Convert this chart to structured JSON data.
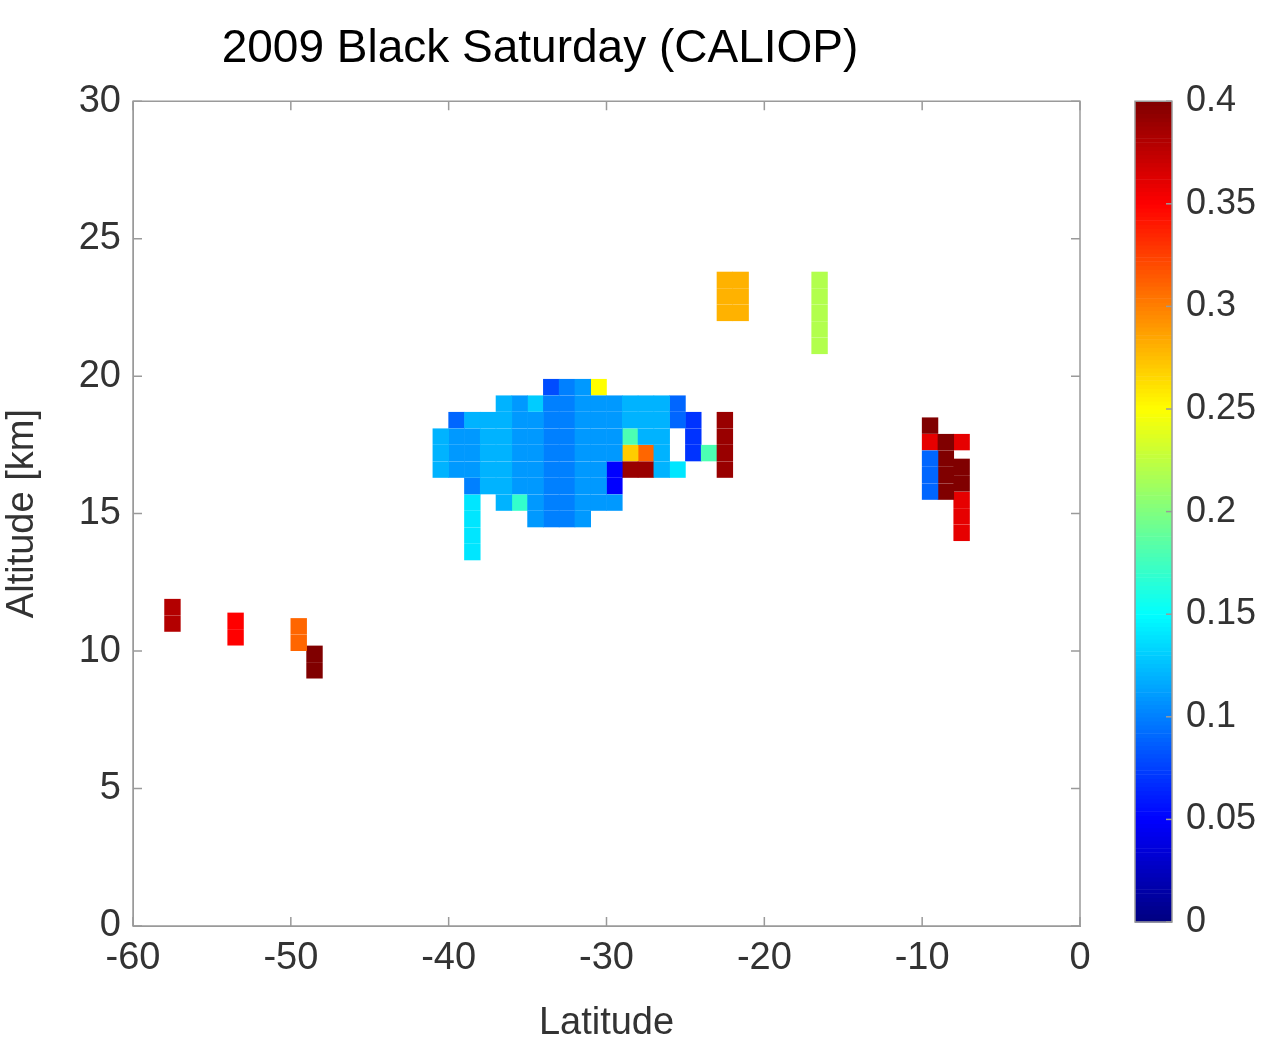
{
  "chart_data": {
    "type": "scatter",
    "title": "2009 Black Saturday (CALIOP)",
    "xlabel": "Latitude",
    "ylabel": "Altitude [km]",
    "xlim": [
      -60,
      0
    ],
    "xticks": [
      -60,
      -50,
      -40,
      -30,
      -20,
      -10,
      0
    ],
    "ylim": [
      0,
      30
    ],
    "yticks": [
      0,
      5,
      10,
      15,
      20,
      25,
      30
    ],
    "clim": [
      0,
      0.4
    ],
    "cticks": [
      0,
      0.05,
      0.1,
      0.15,
      0.2,
      0.25,
      0.3,
      0.35,
      0.4
    ],
    "marker": "square",
    "grid": false,
    "legend": false,
    "series": [
      {
        "x": [
          -40.5,
          -40.5,
          -40.5,
          -38.5,
          -37.5,
          -37.5,
          -37.5,
          -37.5,
          -37.5,
          -36.5,
          -36.5,
          -36.5,
          -36.5,
          -36.5,
          -36.5,
          -36.5,
          -28.5,
          -28.5,
          -27.5,
          -27.5,
          -27.5,
          -26.5,
          -26.5,
          -26.5,
          -26.5,
          -26.5
        ],
        "values": [
          16.6,
          17.2,
          17.8,
          18.4,
          16.0,
          16.6,
          17.2,
          17.8,
          18.4,
          15.4,
          16.0,
          16.6,
          17.2,
          17.8,
          18.4,
          19.0,
          18.4,
          19.0,
          17.8,
          18.4,
          19.0,
          16.6,
          17.2,
          17.8,
          18.4,
          19.0
        ],
        "cvalues": [
          0.12,
          0.12,
          0.12,
          0.12,
          0.12,
          0.12,
          0.12,
          0.12,
          0.12,
          0.12,
          0.12,
          0.12,
          0.12,
          0.12,
          0.12,
          0.12,
          0.12,
          0.12,
          0.12,
          0.12,
          0.12,
          0.12,
          0.12,
          0.12,
          0.12,
          0.12
        ]
      },
      {
        "x": [
          -39.5,
          -39.5,
          -39.5,
          -38.5,
          -38.5,
          -38.5,
          -35.5,
          -35.5,
          -35.5,
          -35.5,
          -35.5,
          -35.5,
          -34.5,
          -34.5,
          -34.5,
          -34.5,
          -34.5,
          -34.5,
          -34.5,
          -31.5,
          -31.5,
          -31.5,
          -31.5,
          -31.5,
          -31.5,
          -31.5,
          -31.5,
          -31.5,
          -30.5,
          -30.5,
          -30.5,
          -30.5,
          -30.5,
          -30.5,
          -30.5,
          -29.5,
          -29.5,
          -29.5,
          -29.5,
          -29.5
        ],
        "values": [
          16.6,
          17.2,
          17.8,
          16.6,
          17.2,
          17.8,
          16.0,
          16.6,
          17.2,
          17.8,
          18.4,
          19.0,
          14.8,
          15.4,
          16.0,
          16.6,
          17.2,
          17.8,
          18.4,
          14.8,
          15.4,
          16.0,
          16.6,
          17.2,
          17.8,
          18.4,
          19.0,
          19.6,
          15.4,
          16.0,
          16.6,
          17.2,
          17.8,
          18.4,
          19.0,
          15.4,
          17.2,
          17.8,
          18.4,
          19.0
        ],
        "cvalues": [
          0.11,
          0.11,
          0.11,
          0.11,
          0.11,
          0.11,
          0.11,
          0.11,
          0.11,
          0.11,
          0.11,
          0.11,
          0.11,
          0.11,
          0.11,
          0.11,
          0.11,
          0.11,
          0.11,
          0.11,
          0.11,
          0.11,
          0.11,
          0.11,
          0.11,
          0.11,
          0.11,
          0.11,
          0.11,
          0.11,
          0.11,
          0.11,
          0.11,
          0.11,
          0.11,
          0.11,
          0.11,
          0.11,
          0.11,
          0.11
        ]
      },
      {
        "x": [
          -38.5,
          -33.5,
          -33.5,
          -33.5,
          -33.5,
          -33.5,
          -33.5,
          -33.5,
          -33.5,
          -32.5,
          -32.5,
          -32.5,
          -32.5,
          -32.5,
          -32.5,
          -32.5,
          -32.5,
          -32.5
        ],
        "values": [
          16.0,
          14.8,
          15.4,
          16.0,
          16.6,
          17.2,
          17.8,
          18.4,
          19.0,
          14.8,
          15.4,
          16.0,
          16.6,
          17.2,
          17.8,
          18.4,
          19.0,
          19.6
        ],
        "cvalues": [
          0.1,
          0.1,
          0.1,
          0.1,
          0.1,
          0.1,
          0.1,
          0.1,
          0.1,
          0.1,
          0.1,
          0.1,
          0.1,
          0.1,
          0.1,
          0.1,
          0.1,
          0.1
        ]
      },
      {
        "x": [
          -39.5,
          -25.5,
          -25.5,
          -9.5,
          -9.5,
          -9.5
        ],
        "values": [
          18.4,
          18.4,
          19.0,
          15.8,
          16.4,
          17.0
        ],
        "cvalues": [
          0.09,
          0.09,
          0.09,
          0.09,
          0.09,
          0.09
        ]
      },
      {
        "x": [
          -33.5
        ],
        "values": [
          19.6
        ],
        "cvalues": [
          0.08
        ]
      },
      {
        "x": [
          -38.5,
          -38.5,
          -38.5,
          -38.5,
          -25.5
        ],
        "values": [
          13.6,
          14.2,
          14.8,
          15.4,
          16.6
        ],
        "cvalues": [
          0.14,
          0.14,
          0.14,
          0.14,
          0.14
        ]
      },
      {
        "x": [
          -35.5
        ],
        "values": [
          15.4
        ],
        "cvalues": [
          0.17
        ]
      },
      {
        "x": [
          -34.5
        ],
        "values": [
          19.0
        ],
        "cvalues": [
          0.13
        ]
      },
      {
        "x": [
          -30.5
        ],
        "values": [
          19.6
        ],
        "cvalues": [
          0.25
        ]
      },
      {
        "x": [
          -29.5,
          -29.5
        ],
        "values": [
          16.0,
          16.6
        ],
        "cvalues": [
          0.05,
          0.05
        ]
      },
      {
        "x": [
          -28.5,
          -27.5,
          -22.5,
          -22.5,
          -22.5,
          -22.5
        ],
        "values": [
          16.6,
          16.6,
          16.6,
          17.2,
          17.8,
          18.4
        ],
        "cvalues": [
          0.39,
          0.39,
          0.39,
          0.39,
          0.39,
          0.39
        ]
      },
      {
        "x": [
          -28.5
        ],
        "values": [
          17.2
        ],
        "cvalues": [
          0.27
        ]
      },
      {
        "x": [
          -28.5,
          -23.5
        ],
        "values": [
          17.8,
          17.2
        ],
        "cvalues": [
          0.18,
          0.18
        ]
      },
      {
        "x": [
          -27.5,
          -49.5,
          -49.5
        ],
        "values": [
          17.2,
          10.3,
          10.9
        ],
        "cvalues": [
          0.31,
          0.31,
          0.31
        ]
      },
      {
        "x": [
          -24.5,
          -24.5,
          -24.5
        ],
        "values": [
          17.2,
          17.8,
          18.4
        ],
        "cvalues": [
          0.07,
          0.07,
          0.07
        ]
      },
      {
        "x": [
          -22.5,
          -22.5,
          -22.5,
          -21.5,
          -21.5,
          -21.5
        ],
        "values": [
          22.3,
          22.9,
          23.5,
          22.3,
          22.9,
          23.5
        ],
        "cvalues": [
          0.28,
          0.28,
          0.28,
          0.28,
          0.28,
          0.28
        ]
      },
      {
        "x": [
          -16.5,
          -16.5,
          -16.5,
          -16.5,
          -16.5
        ],
        "values": [
          21.1,
          21.7,
          22.3,
          22.9,
          23.5
        ],
        "cvalues": [
          0.22,
          0.22,
          0.22,
          0.22,
          0.22
        ]
      },
      {
        "x": [
          -57.5,
          -57.5
        ],
        "values": [
          11.0,
          11.6
        ],
        "cvalues": [
          0.38,
          0.38
        ]
      },
      {
        "x": [
          -53.5,
          -53.5
        ],
        "values": [
          10.5,
          11.1
        ],
        "cvalues": [
          0.35,
          0.35
        ]
      },
      {
        "x": [
          -48.5,
          -48.5,
          -9.5,
          -8.5,
          -8.5,
          -8.5,
          -8.5,
          -7.5,
          -7.5
        ],
        "values": [
          9.3,
          9.9,
          18.2,
          15.8,
          16.4,
          17.0,
          17.6,
          16.1,
          16.7
        ],
        "cvalues": [
          0.4,
          0.4,
          0.4,
          0.4,
          0.4,
          0.4,
          0.4,
          0.4,
          0.4
        ]
      },
      {
        "x": [
          -9.5,
          -7.5,
          -7.5,
          -7.5,
          -7.5
        ],
        "values": [
          17.6,
          14.3,
          14.9,
          15.5,
          17.6
        ],
        "cvalues": [
          0.36,
          0.36,
          0.36,
          0.36,
          0.36
        ]
      }
    ]
  }
}
